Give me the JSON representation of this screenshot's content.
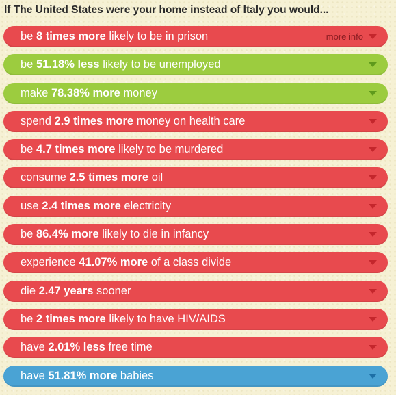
{
  "heading": "If The United States were your home instead of Italy you would...",
  "more_info_label": "more info",
  "colors": {
    "red": "#e84a4e",
    "green": "#9ccc3f",
    "blue": "#4aa3d4",
    "background": "#f6f1d4"
  },
  "items": [
    {
      "color": "red",
      "pre": "be ",
      "bold": "8 times more",
      "post": " likely to be in prison",
      "icon": "chevron-down-icon"
    },
    {
      "color": "green",
      "pre": "be ",
      "bold": "51.18% less",
      "post": " likely to be unemployed",
      "icon": "chevron-down-icon"
    },
    {
      "color": "green",
      "pre": "make ",
      "bold": "78.38% more",
      "post": " money",
      "icon": "chevron-down-icon"
    },
    {
      "color": "red",
      "pre": "spend ",
      "bold": "2.9 times more",
      "post": " money on health care",
      "icon": "chevron-down-icon"
    },
    {
      "color": "red",
      "pre": "be ",
      "bold": "4.7 times more",
      "post": " likely to be murdered",
      "icon": "chevron-down-icon"
    },
    {
      "color": "red",
      "pre": "consume ",
      "bold": "2.5 times more",
      "post": " oil",
      "icon": "chevron-down-icon"
    },
    {
      "color": "red",
      "pre": "use ",
      "bold": "2.4 times more",
      "post": " electricity",
      "icon": "chevron-down-icon"
    },
    {
      "color": "red",
      "pre": "be ",
      "bold": "86.4% more",
      "post": " likely to die in infancy",
      "icon": "chevron-down-icon"
    },
    {
      "color": "red",
      "pre": "experience ",
      "bold": "41.07% more",
      "post": " of a class divide",
      "icon": "chevron-down-icon"
    },
    {
      "color": "red",
      "pre": "die ",
      "bold": "2.47 years",
      "post": " sooner",
      "icon": "chevron-down-icon"
    },
    {
      "color": "red",
      "pre": "be ",
      "bold": "2 times more",
      "post": " likely to have HIV/AIDS",
      "icon": "chevron-down-icon"
    },
    {
      "color": "red",
      "pre": "have ",
      "bold": "2.01% less",
      "post": " free time",
      "icon": "chevron-down-icon"
    },
    {
      "color": "blue",
      "pre": "have ",
      "bold": "51.81% more",
      "post": " babies",
      "icon": "chevron-down-icon"
    }
  ]
}
